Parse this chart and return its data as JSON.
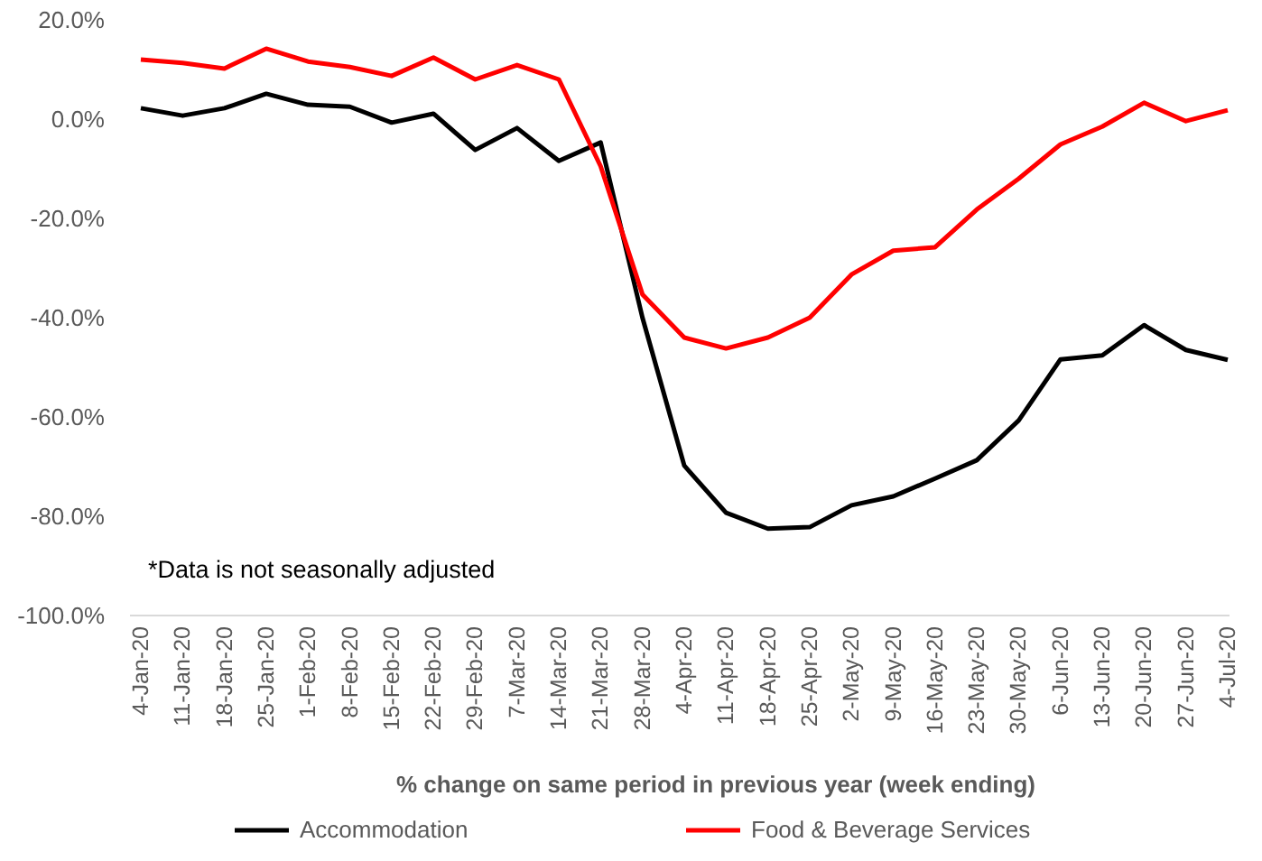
{
  "chart_data": {
    "type": "line",
    "xlabel": "% change on same period in previous year (week ending)",
    "categories": [
      "4-Jan-20",
      "11-Jan-20",
      "18-Jan-20",
      "25-Jan-20",
      "1-Feb-20",
      "8-Feb-20",
      "15-Feb-20",
      "22-Feb-20",
      "29-Feb-20",
      "7-Mar-20",
      "14-Mar-20",
      "21-Mar-20",
      "28-Mar-20",
      "4-Apr-20",
      "11-Apr-20",
      "18-Apr-20",
      "25-Apr-20",
      "2-May-20",
      "9-May-20",
      "16-May-20",
      "23-May-20",
      "30-May-20",
      "6-Jun-20",
      "13-Jun-20",
      "20-Jun-20",
      "27-Jun-20",
      "4-Jul-20"
    ],
    "series": [
      {
        "name": "Accommodation",
        "color": "#000000",
        "values": [
          2.2,
          0.7,
          2.2,
          5.1,
          2.9,
          2.5,
          -0.7,
          1.1,
          -6.2,
          -1.8,
          -8.4,
          -4.7,
          -40,
          -69.8,
          -79.3,
          -82.5,
          -82.2,
          -77.8,
          -76,
          -72.4,
          -68.7,
          -60.7,
          -48.4,
          -47.6,
          -41.5,
          -46.5,
          -48.5
        ]
      },
      {
        "name": "Food & Beverage Services",
        "color": "#ff0000",
        "values": [
          12,
          11.3,
          10.2,
          14.2,
          11.6,
          10.5,
          8.7,
          12.4,
          8,
          10.9,
          8,
          -9.5,
          -35.3,
          -44,
          -46.2,
          -44,
          -40,
          -31.3,
          -26.5,
          -25.8,
          -18.2,
          -12,
          -5.1,
          -1.5,
          3.3,
          -0.4,
          1.8
        ]
      }
    ],
    "ylim": [
      -100,
      20
    ],
    "yticks": [
      {
        "value": -100,
        "label": "-100.0%"
      },
      {
        "value": -80,
        "label": "-80.0%"
      },
      {
        "value": -60,
        "label": "-60.0%"
      },
      {
        "value": -40,
        "label": "-40.0%"
      },
      {
        "value": -20,
        "label": "-20.0%"
      },
      {
        "value": 0,
        "label": "0.0%"
      },
      {
        "value": 20,
        "label": "20.0%"
      }
    ],
    "annotations": [
      "*Data is not seasonally adjusted"
    ],
    "legend": "bottom",
    "marker": "none",
    "line_style": "solid"
  }
}
